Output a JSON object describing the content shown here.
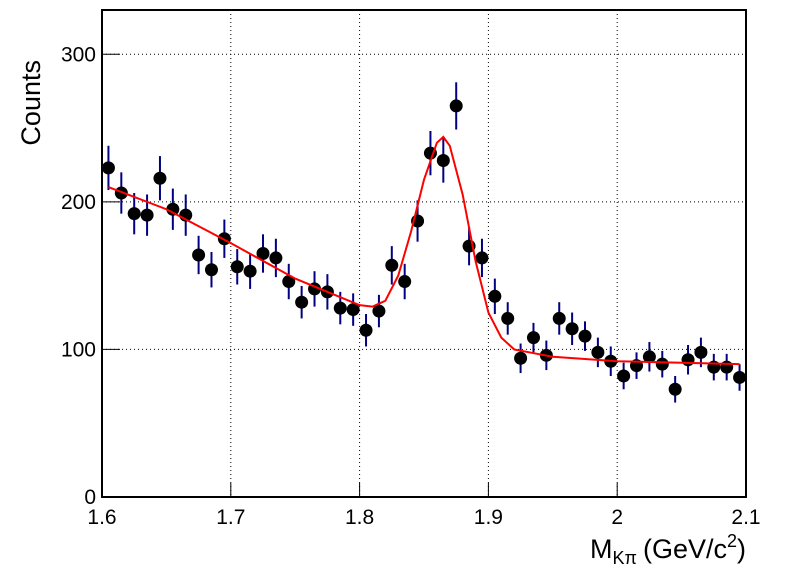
{
  "chart_data": {
    "type": "scatter",
    "x_label": {
      "main": "M",
      "sub": "Kπ",
      "unit": "(GeV/c",
      "sup": "2",
      "close": ")"
    },
    "y_label": "Counts",
    "xlim": [
      1.6,
      2.1
    ],
    "xticks": [
      1.6,
      1.7,
      1.8,
      1.9,
      2,
      2.1
    ],
    "ylim": [
      0,
      330
    ],
    "yticks": [
      0,
      100,
      200,
      300
    ],
    "grid": true,
    "series": [
      {
        "type": "scatter",
        "color": "#000000",
        "error_color": "#000080",
        "x": [
          1.605,
          1.615,
          1.625,
          1.635,
          1.645,
          1.655,
          1.665,
          1.675,
          1.685,
          1.695,
          1.705,
          1.715,
          1.725,
          1.735,
          1.745,
          1.755,
          1.765,
          1.775,
          1.785,
          1.795,
          1.805,
          1.815,
          1.825,
          1.835,
          1.845,
          1.855,
          1.865,
          1.875,
          1.885,
          1.895,
          1.905,
          1.915,
          1.925,
          1.935,
          1.945,
          1.955,
          1.965,
          1.975,
          1.985,
          1.995,
          2.005,
          2.015,
          2.025,
          2.035,
          2.045,
          2.055,
          2.065,
          2.075,
          2.085,
          2.095
        ],
        "values": [
          223,
          206,
          192,
          191,
          216,
          195,
          191,
          164,
          154,
          175,
          156,
          153,
          165,
          162,
          146,
          132,
          141,
          139,
          128,
          127,
          113,
          126,
          157,
          146,
          187,
          233,
          228,
          265,
          170,
          162,
          136,
          121,
          94,
          108,
          96,
          121,
          114,
          109,
          98,
          92,
          82,
          89,
          95,
          90,
          73,
          93,
          98,
          88,
          88,
          81
        ],
        "errors": [
          15,
          14,
          14,
          14,
          15,
          14,
          14,
          13,
          12,
          13,
          12,
          12,
          13,
          13,
          12,
          11,
          12,
          12,
          11,
          11,
          11,
          11,
          13,
          12,
          14,
          15,
          15,
          16,
          13,
          13,
          12,
          11,
          10,
          10,
          10,
          11,
          11,
          10,
          10,
          10,
          9,
          9,
          10,
          9,
          9,
          10,
          10,
          9,
          9,
          9
        ]
      },
      {
        "type": "line",
        "color": "#ff0000",
        "x": [
          1.605,
          1.65,
          1.7,
          1.75,
          1.8,
          1.81,
          1.82,
          1.83,
          1.84,
          1.85,
          1.86,
          1.865,
          1.87,
          1.88,
          1.89,
          1.9,
          1.91,
          1.92,
          1.95,
          2.0,
          2.05,
          2.095
        ],
        "values": [
          210,
          195,
          172,
          148,
          130,
          129,
          133,
          150,
          180,
          215,
          240,
          244,
          238,
          205,
          160,
          125,
          108,
          100,
          95,
          92,
          91,
          90
        ]
      }
    ]
  }
}
